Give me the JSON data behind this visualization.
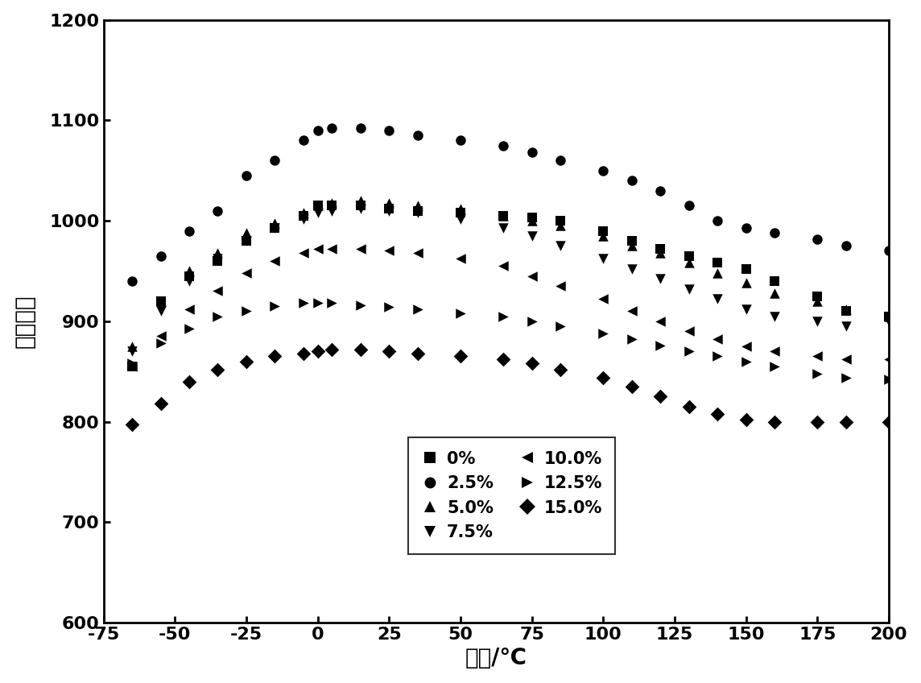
{
  "xlabel": "温度/℃",
  "ylabel": "介电常数",
  "xlim": [
    -75,
    200
  ],
  "ylim": [
    600,
    1200
  ],
  "xticks": [
    -75,
    -50,
    -25,
    0,
    25,
    50,
    75,
    100,
    125,
    150,
    175,
    200
  ],
  "yticks": [
    600,
    700,
    800,
    900,
    1000,
    1100,
    1200
  ],
  "series": [
    {
      "label": "0%",
      "marker": "s",
      "color": "#000000",
      "x": [
        -65,
        -55,
        -45,
        -35,
        -25,
        -15,
        -5,
        0,
        5,
        15,
        25,
        35,
        50,
        65,
        75,
        85,
        100,
        110,
        120,
        130,
        140,
        150,
        160,
        175,
        185,
        200
      ],
      "y": [
        855,
        920,
        945,
        960,
        980,
        993,
        1005,
        1015,
        1015,
        1015,
        1012,
        1010,
        1008,
        1005,
        1003,
        1000,
        990,
        980,
        972,
        965,
        958,
        952,
        940,
        925,
        910,
        905
      ]
    },
    {
      "label": "2.5%",
      "marker": "o",
      "color": "#000000",
      "x": [
        -65,
        -55,
        -45,
        -35,
        -25,
        -15,
        -5,
        0,
        5,
        15,
        25,
        35,
        50,
        65,
        75,
        85,
        100,
        110,
        120,
        130,
        140,
        150,
        160,
        175,
        185,
        200
      ],
      "y": [
        940,
        965,
        990,
        1010,
        1045,
        1060,
        1080,
        1090,
        1092,
        1092,
        1090,
        1085,
        1080,
        1075,
        1068,
        1060,
        1050,
        1040,
        1030,
        1015,
        1000,
        993,
        988,
        982,
        975,
        970
      ]
    },
    {
      "label": "5.0%",
      "marker": "^",
      "color": "#000000",
      "x": [
        -65,
        -55,
        -45,
        -35,
        -25,
        -15,
        -5,
        0,
        5,
        15,
        25,
        35,
        50,
        65,
        75,
        85,
        100,
        110,
        120,
        130,
        140,
        150,
        160,
        175,
        185,
        200
      ],
      "y": [
        875,
        920,
        950,
        968,
        988,
        998,
        1008,
        1015,
        1018,
        1020,
        1018,
        1015,
        1012,
        1005,
        1000,
        995,
        985,
        975,
        968,
        958,
        948,
        938,
        928,
        920,
        912,
        905
      ]
    },
    {
      "label": "7.5%",
      "marker": "v",
      "color": "#000000",
      "x": [
        -65,
        -55,
        -45,
        -35,
        -25,
        -15,
        -5,
        0,
        5,
        15,
        25,
        35,
        50,
        65,
        75,
        85,
        100,
        110,
        120,
        130,
        140,
        150,
        160,
        175,
        185,
        200
      ],
      "y": [
        870,
        910,
        940,
        962,
        980,
        993,
        1002,
        1008,
        1010,
        1012,
        1010,
        1008,
        1002,
        993,
        985,
        975,
        962,
        952,
        942,
        932,
        922,
        912,
        905,
        900,
        895,
        900
      ]
    },
    {
      "label": "10.0%",
      "marker": "<",
      "color": "#000000",
      "x": [
        -65,
        -55,
        -45,
        -35,
        -25,
        -15,
        -5,
        0,
        5,
        15,
        25,
        35,
        50,
        65,
        75,
        85,
        100,
        110,
        120,
        130,
        140,
        150,
        160,
        175,
        185,
        200
      ],
      "y": [
        855,
        885,
        912,
        930,
        948,
        960,
        968,
        972,
        972,
        972,
        970,
        968,
        962,
        955,
        945,
        935,
        922,
        910,
        900,
        890,
        882,
        875,
        870,
        865,
        862,
        862
      ]
    },
    {
      "label": "12.5%",
      "marker": ">",
      "color": "#000000",
      "x": [
        -65,
        -55,
        -45,
        -35,
        -25,
        -15,
        -5,
        0,
        5,
        15,
        25,
        35,
        50,
        65,
        75,
        85,
        100,
        110,
        120,
        130,
        140,
        150,
        160,
        175,
        185,
        200
      ],
      "y": [
        858,
        878,
        893,
        905,
        910,
        915,
        918,
        918,
        918,
        916,
        914,
        912,
        908,
        905,
        900,
        895,
        888,
        882,
        876,
        870,
        865,
        860,
        855,
        848,
        844,
        842
      ]
    },
    {
      "label": "15.0%",
      "marker": "D",
      "color": "#000000",
      "x": [
        -65,
        -55,
        -45,
        -35,
        -25,
        -15,
        -5,
        0,
        5,
        15,
        25,
        35,
        50,
        65,
        75,
        85,
        100,
        110,
        120,
        130,
        140,
        150,
        160,
        175,
        185,
        200
      ],
      "y": [
        797,
        818,
        840,
        852,
        860,
        865,
        868,
        870,
        872,
        872,
        870,
        868,
        865,
        862,
        858,
        852,
        844,
        835,
        825,
        815,
        808,
        802,
        800,
        800,
        800,
        800
      ]
    }
  ],
  "markersize": 9,
  "background_color": "#ffffff",
  "axis_color": "#000000",
  "fontsize_label": 20,
  "fontsize_tick": 16,
  "fontsize_legend": 15
}
